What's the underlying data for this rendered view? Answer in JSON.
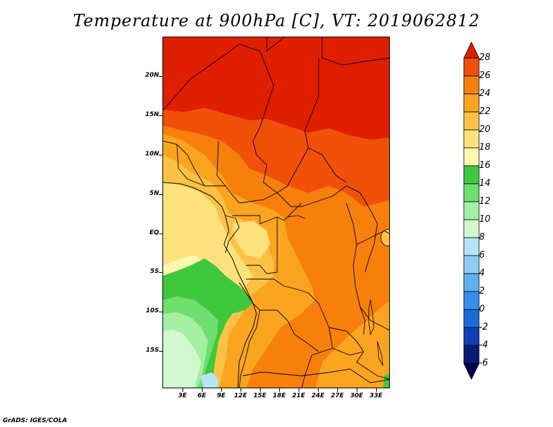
{
  "title": "Temperature at 900hPa [C], VT: 2019062812",
  "footer": "GrADS: IGES/COLA",
  "map": {
    "lat_labels": [
      "20N",
      "15N",
      "10N",
      "5N",
      "EQ",
      "5S",
      "10S",
      "15S"
    ],
    "lon_labels": [
      "3E",
      "6E",
      "9E",
      "12E",
      "15E",
      "18E",
      "21E",
      "24E",
      "27E",
      "30E",
      "33E"
    ]
  },
  "colorbar": {
    "labels": [
      "28",
      "26",
      "24",
      "22",
      "20",
      "18",
      "16",
      "14",
      "12",
      "10",
      "8",
      "6",
      "4",
      "2",
      "0",
      "-2",
      "-4",
      "-6"
    ],
    "colors": [
      "#e01e00",
      "#f0500a",
      "#f77f0c",
      "#fba41f",
      "#fdc245",
      "#fde17d",
      "#fdf7b0",
      "#3ec83e",
      "#6ede6e",
      "#a3efa3",
      "#d0f9d0",
      "#b4e3fa",
      "#8ecbf5",
      "#5faeee",
      "#378eea",
      "#1c6cd8",
      "#0f3fb4",
      "#0b1a78",
      "#000050"
    ]
  }
}
